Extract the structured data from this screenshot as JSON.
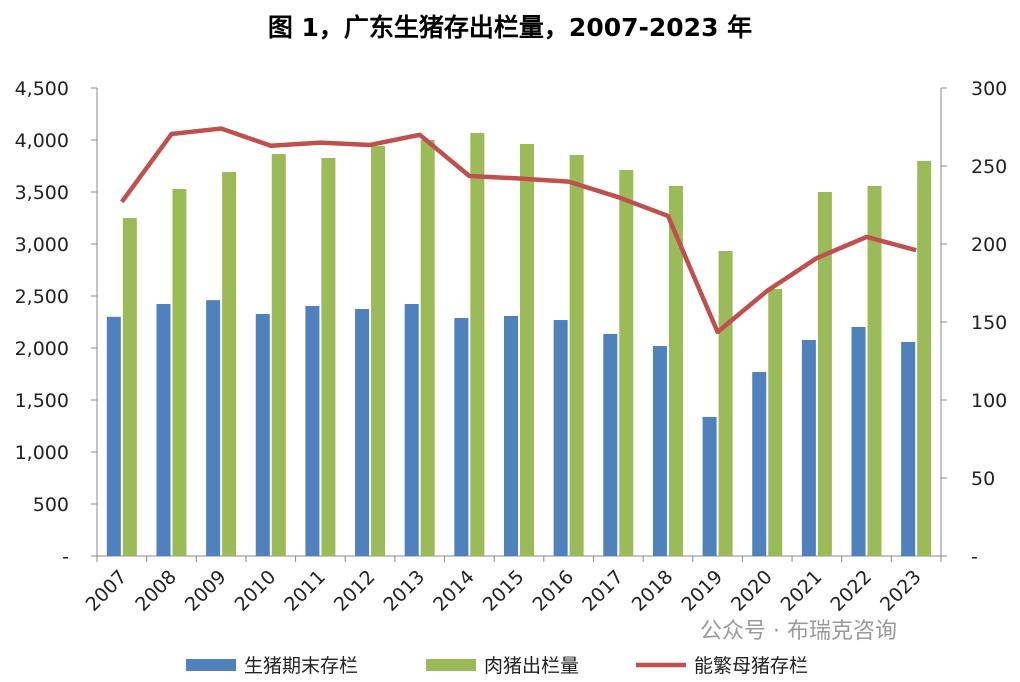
{
  "chart_data": {
    "type": "bar",
    "title": "图 1，广东生猪存出栏量，2007-2023 年",
    "categories": [
      "2007",
      "2008",
      "2009",
      "2010",
      "2011",
      "2012",
      "2013",
      "2014",
      "2015",
      "2016",
      "2017",
      "2018",
      "2019",
      "2020",
      "2021",
      "2022",
      "2023"
    ],
    "series": [
      {
        "name": "生猪期末存栏",
        "type": "bar",
        "axis": "left",
        "color": "#4f81bd",
        "values": [
          2300,
          2423,
          2460,
          2327,
          2404,
          2375,
          2423,
          2288,
          2308,
          2269,
          2135,
          2019,
          1337,
          1769,
          2077,
          2202,
          2058
        ]
      },
      {
        "name": "肉猪出栏量",
        "type": "bar",
        "axis": "left",
        "color": "#9bbb59",
        "values": [
          3250,
          3529,
          3692,
          3865,
          3827,
          3942,
          4000,
          4067,
          3962,
          3856,
          3712,
          3558,
          2933,
          2567,
          3500,
          3558,
          3798
        ]
      },
      {
        "name": "能繁母猪存栏",
        "type": "line",
        "axis": "right",
        "color": "#c0504d",
        "values": [
          227,
          270.5,
          274,
          263,
          265,
          263.5,
          270,
          243.6,
          242,
          240,
          230,
          218,
          143.6,
          170,
          191,
          204.5,
          196
        ]
      }
    ],
    "left_axis": {
      "ylim": [
        0,
        4500
      ],
      "ticks": [
        "-",
        "500",
        "1,000",
        "1,500",
        "2,000",
        "2,500",
        "3,000",
        "3,500",
        "4,000",
        "4,500"
      ]
    },
    "right_axis": {
      "ylim": [
        0,
        300
      ],
      "ticks": [
        "-",
        "50",
        "100",
        "150",
        "200",
        "250",
        "300"
      ]
    },
    "grid": false,
    "legend_position": "bottom"
  },
  "watermark": "公众号 · 布瑞克咨询"
}
